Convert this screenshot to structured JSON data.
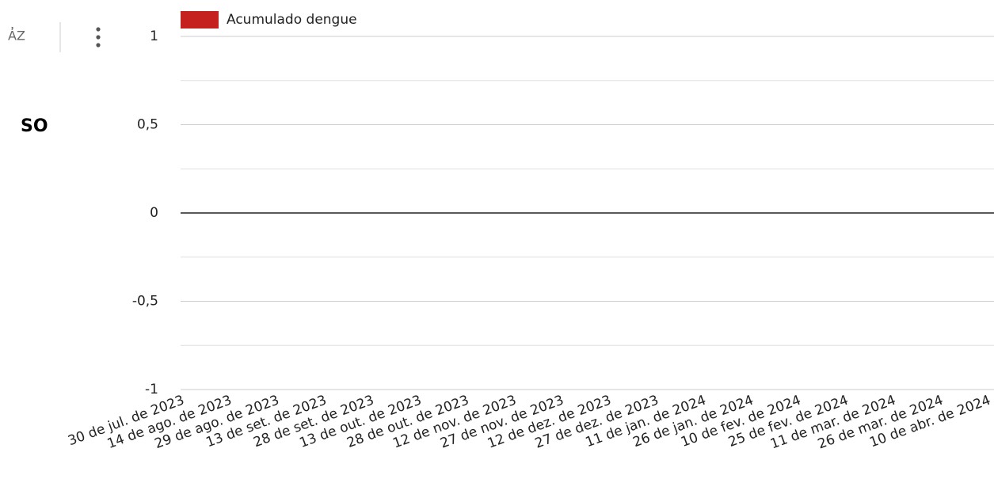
{
  "side_title": "SO",
  "chart_data": {
    "type": "bar",
    "categories": [
      "30 de jul. de 2023",
      "14 de ago. de 2023",
      "29 de ago. de 2023",
      "13 de set. de 2023",
      "28 de set. de 2023",
      "13 de out. de 2023",
      "28 de out. de 2023",
      "12 de nov. de 2023",
      "27 de nov. de 2023",
      "12 de dez. de 2023",
      "27 de dez. de 2023",
      "11 de jan. de 2024",
      "26 de jan. de 2024",
      "10 de fev. de 2024",
      "25 de fev. de 2024",
      "11 de mar. de 2024",
      "26 de mar. de 2024",
      "10 de abr. de 2024"
    ],
    "series": [
      {
        "name": "Acumulado dengue",
        "color": "#c5221f",
        "values": [
          null,
          null,
          null,
          null,
          null,
          null,
          null,
          null,
          null,
          null,
          null,
          null,
          null,
          null,
          null,
          null,
          null,
          null
        ]
      }
    ],
    "ylim": [
      -1,
      1
    ],
    "yticks": [
      1,
      {
        "value": 0.5,
        "label": "0,5"
      },
      0,
      {
        "value": -0.5,
        "label": "-0,5"
      },
      -1
    ],
    "minor_yticks": [
      0.75,
      0.25,
      -0.25,
      -0.75
    ],
    "grid": true,
    "legend": "top-left"
  }
}
